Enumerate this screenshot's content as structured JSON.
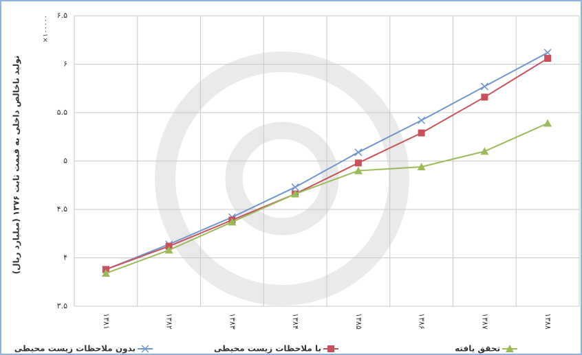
{
  "chart_data": {
    "type": "line",
    "y_axis_label": "تولید ناخالص داخلی به قیمت ثابت ۱۳۷۶ (میلیارد ریال)",
    "y_multiplier": "×۱۰۰۰۰۰",
    "categories": [
      "۱۳۸۱",
      "۱۳۸۲",
      "۱۳۸۳",
      "۱۳۸۴",
      "۱۳۸۵",
      "۱۳۸۶",
      "۱۳۸۷",
      "۱۳۸۸"
    ],
    "series": [
      {
        "name": "بدون ملاحظات زیست محیطی",
        "color": "#6f96cf",
        "marker": "x",
        "values": [
          3.88,
          4.14,
          4.42,
          4.73,
          5.09,
          5.42,
          5.77,
          6.12
        ]
      },
      {
        "name": "با ملاحظات زیست محیطی",
        "color": "#c9505a",
        "marker": "square",
        "values": [
          3.88,
          4.12,
          4.39,
          4.66,
          4.98,
          5.29,
          5.66,
          6.06
        ]
      },
      {
        "name": "تحقق یافته",
        "color": "#9bbb59",
        "marker": "triangle",
        "values": [
          3.84,
          4.08,
          4.37,
          4.66,
          4.9,
          4.94,
          5.1,
          5.39
        ]
      }
    ],
    "ylim": [
      3.5,
      6.5
    ],
    "yticks": [
      {
        "value": 3.5,
        "label": "۳.۵"
      },
      {
        "value": 4,
        "label": "۴"
      },
      {
        "value": 4.5,
        "label": "۴.۵"
      },
      {
        "value": 5,
        "label": "۵"
      },
      {
        "value": 5.5,
        "label": "۵.۵"
      },
      {
        "value": 6,
        "label": "۶"
      },
      {
        "value": 6.5,
        "label": "۶.۵"
      }
    ],
    "grid": true
  }
}
